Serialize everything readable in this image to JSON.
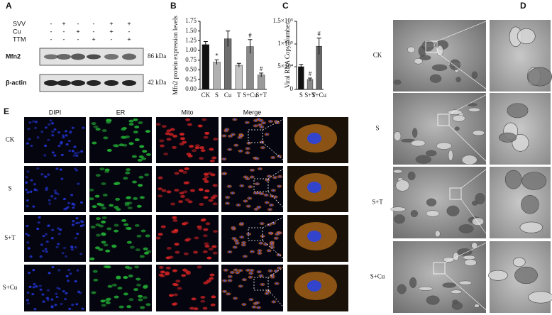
{
  "panel_a": {
    "label": "A",
    "conditions": [
      {
        "name": "SVV",
        "signs": [
          "-",
          "+",
          "-",
          "-",
          "+",
          "+"
        ]
      },
      {
        "name": "Cu",
        "signs": [
          "-",
          "-",
          "+",
          "-",
          "+",
          "-"
        ]
      },
      {
        "name": "TTM",
        "signs": [
          "-",
          "-",
          "-",
          "+",
          "-",
          "+"
        ]
      }
    ],
    "blots": [
      {
        "name": "Mfn2",
        "size": "86 kDa"
      },
      {
        "name": "β-actin",
        "size": "42 kDa"
      }
    ]
  },
  "chart_data": [
    {
      "type": "bar",
      "label": "B",
      "y_label": "Mfn2 protein expression levels",
      "categories": [
        "CK",
        "S",
        "Cu",
        "T",
        "S+Cu",
        "S+T"
      ],
      "values": [
        1.15,
        0.7,
        1.3,
        0.62,
        1.1,
        0.37
      ],
      "errors": [
        0.08,
        0.06,
        0.2,
        0.05,
        0.18,
        0.05
      ],
      "colors": [
        "#111111",
        "#b0b0b0",
        "#6e6e6e",
        "#c4c4c4",
        "#8a8a8a",
        "#9a9a9a"
      ],
      "annotations": {
        "S": "*",
        "S+Cu": "#",
        "S+T": "#"
      },
      "ylim": [
        0,
        1.75
      ],
      "yticks": [
        {
          "value": 0,
          "label": "0.00"
        },
        {
          "value": 0.25,
          "label": "0.25"
        },
        {
          "value": 0.5,
          "label": "0.50"
        },
        {
          "value": 0.75,
          "label": "0.75"
        },
        {
          "value": 1,
          "label": "1.00"
        },
        {
          "value": 1.25,
          "label": "1.25"
        },
        {
          "value": 1.5,
          "label": "1.50"
        },
        {
          "value": 1.75,
          "label": "1.75"
        }
      ]
    },
    {
      "type": "bar",
      "label": "C",
      "y_label": "Viral RNA Copy Number",
      "categories": [
        "S",
        "S+T",
        "S+Cu"
      ],
      "values": [
        50000,
        22000,
        95000
      ],
      "errors": [
        5000,
        3000,
        18000
      ],
      "colors": [
        "#111111",
        "#8a8a8a",
        "#666666"
      ],
      "annotations": {
        "S+T": "#",
        "S+Cu": "#"
      },
      "ylim": [
        0,
        150000
      ],
      "yticks": [
        0,
        {
          "value": 50000,
          "label": "5×10⁴"
        },
        {
          "value": 100000,
          "label": "1×10⁵"
        },
        {
          "value": 150000,
          "label": "1.5×10⁵"
        }
      ]
    }
  ],
  "panel_d": {
    "label": "D",
    "rows": [
      "CK",
      "S",
      "S+T",
      "S+Cu"
    ]
  },
  "panel_e": {
    "label": "E",
    "columns": [
      "DIPI",
      "ER",
      "Mito",
      "Merge"
    ],
    "rows": [
      "CK",
      "S",
      "S+T",
      "S+Cu"
    ]
  }
}
